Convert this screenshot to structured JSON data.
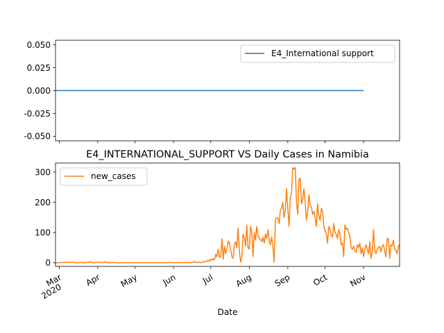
{
  "chart_data": [
    {
      "type": "line",
      "title": "",
      "xlabel": "",
      "ylabel": "",
      "ylim": [
        -0.055,
        0.055
      ],
      "yticks": [
        "0.050",
        "0.025",
        "0.000",
        "-0.025",
        "-0.050"
      ],
      "ytick_values": [
        0.05,
        0.025,
        0.0,
        -0.025,
        -0.05
      ],
      "legend": "upper right",
      "series": [
        {
          "name": "E4_International support",
          "color": "#1f77b4",
          "x": [
            "2020-02-27",
            "2020-11-01"
          ],
          "values": [
            0,
            0
          ]
        }
      ]
    },
    {
      "type": "line",
      "title": "E4_INTERNATIONAL_SUPPORT VS Daily Cases in Namibia",
      "xlabel": "Date",
      "ylabel": "",
      "ylim": [
        -12,
        330
      ],
      "yticks": [
        "0",
        "100",
        "200",
        "300"
      ],
      "ytick_values": [
        0,
        100,
        200,
        300
      ],
      "legend": "upper left",
      "x_ticks": [
        {
          "date": "2020-03-01",
          "label": "Mar",
          "sublabel": "2020"
        },
        {
          "date": "2020-04-01",
          "label": "Apr"
        },
        {
          "date": "2020-05-01",
          "label": "May"
        },
        {
          "date": "2020-06-01",
          "label": "Jun"
        },
        {
          "date": "2020-07-01",
          "label": "Jul"
        },
        {
          "date": "2020-08-01",
          "label": "Aug"
        },
        {
          "date": "2020-09-01",
          "label": "Sep"
        },
        {
          "date": "2020-10-01",
          "label": "Oct"
        },
        {
          "date": "2020-11-01",
          "label": "Nov"
        }
      ],
      "series": [
        {
          "name": "new_cases",
          "color": "#ff7f0e",
          "points": [
            [
              "2020-02-27",
              0
            ],
            [
              "2020-03-13",
              2
            ],
            [
              "2020-03-14",
              0
            ],
            [
              "2020-03-20",
              1
            ],
            [
              "2020-03-21",
              0
            ],
            [
              "2020-03-27",
              3
            ],
            [
              "2020-03-28",
              0
            ],
            [
              "2020-04-03",
              2
            ],
            [
              "2020-04-04",
              0
            ],
            [
              "2020-04-08",
              3
            ],
            [
              "2020-04-09",
              0
            ],
            [
              "2020-04-14",
              1
            ],
            [
              "2020-04-15",
              0
            ],
            [
              "2020-05-28",
              0
            ],
            [
              "2020-05-29",
              2
            ],
            [
              "2020-05-30",
              0
            ],
            [
              "2020-06-14",
              1
            ],
            [
              "2020-06-15",
              0
            ],
            [
              "2020-06-18",
              4
            ],
            [
              "2020-06-19",
              1
            ],
            [
              "2020-06-22",
              2
            ],
            [
              "2020-06-23",
              0
            ],
            [
              "2020-06-26",
              5
            ],
            [
              "2020-06-27",
              3
            ],
            [
              "2020-06-29",
              9
            ],
            [
              "2020-06-30",
              5
            ],
            [
              "2020-07-01",
              12
            ],
            [
              "2020-07-02",
              8
            ],
            [
              "2020-07-03",
              14
            ],
            [
              "2020-07-04",
              10
            ],
            [
              "2020-07-05",
              28
            ],
            [
              "2020-07-06",
              20
            ],
            [
              "2020-07-07",
              45
            ],
            [
              "2020-07-08",
              18
            ],
            [
              "2020-07-09",
              20
            ],
            [
              "2020-07-10",
              80
            ],
            [
              "2020-07-11",
              12
            ],
            [
              "2020-07-12",
              55
            ],
            [
              "2020-07-13",
              30
            ],
            [
              "2020-07-14",
              48
            ],
            [
              "2020-07-15",
              72
            ],
            [
              "2020-07-16",
              65
            ],
            [
              "2020-07-17",
              42
            ],
            [
              "2020-07-18",
              20
            ],
            [
              "2020-07-19",
              15
            ],
            [
              "2020-07-20",
              60
            ],
            [
              "2020-07-21",
              70
            ],
            [
              "2020-07-22",
              50
            ],
            [
              "2020-07-23",
              115
            ],
            [
              "2020-07-24",
              40
            ],
            [
              "2020-07-25",
              2
            ],
            [
              "2020-07-26",
              20
            ],
            [
              "2020-07-27",
              95
            ],
            [
              "2020-07-28",
              82
            ],
            [
              "2020-07-29",
              55
            ],
            [
              "2020-07-30",
              125
            ],
            [
              "2020-07-31",
              50
            ],
            [
              "2020-08-01",
              45
            ],
            [
              "2020-08-02",
              120
            ],
            [
              "2020-08-03",
              105
            ],
            [
              "2020-08-04",
              20
            ],
            [
              "2020-08-05",
              100
            ],
            [
              "2020-08-06",
              75
            ],
            [
              "2020-08-07",
              120
            ],
            [
              "2020-08-08",
              90
            ],
            [
              "2020-08-09",
              80
            ],
            [
              "2020-08-10",
              78
            ],
            [
              "2020-08-11",
              70
            ],
            [
              "2020-08-12",
              85
            ],
            [
              "2020-08-13",
              65
            ],
            [
              "2020-08-14",
              95
            ],
            [
              "2020-08-15",
              80
            ],
            [
              "2020-08-16",
              110
            ],
            [
              "2020-08-17",
              75
            ],
            [
              "2020-08-18",
              60
            ],
            [
              "2020-08-19",
              85
            ],
            [
              "2020-08-20",
              55
            ],
            [
              "2020-08-21",
              2
            ],
            [
              "2020-08-22",
              145
            ],
            [
              "2020-08-23",
              150
            ],
            [
              "2020-08-24",
              148
            ],
            [
              "2020-08-25",
              130
            ],
            [
              "2020-08-26",
              175
            ],
            [
              "2020-08-27",
              180
            ],
            [
              "2020-08-28",
              200
            ],
            [
              "2020-08-29",
              150
            ],
            [
              "2020-08-30",
              175
            ],
            [
              "2020-08-31",
              245
            ],
            [
              "2020-09-01",
              180
            ],
            [
              "2020-09-02",
              120
            ],
            [
              "2020-09-03",
              215
            ],
            [
              "2020-09-04",
              230
            ],
            [
              "2020-09-05",
              315
            ],
            [
              "2020-09-06",
              310
            ],
            [
              "2020-09-07",
              315
            ],
            [
              "2020-09-08",
              200
            ],
            [
              "2020-09-09",
              160
            ],
            [
              "2020-09-10",
              275
            ],
            [
              "2020-09-11",
              280
            ],
            [
              "2020-09-12",
              195
            ],
            [
              "2020-09-13",
              210
            ],
            [
              "2020-09-14",
              245
            ],
            [
              "2020-09-15",
              200
            ],
            [
              "2020-09-16",
              140
            ],
            [
              "2020-09-17",
              170
            ],
            [
              "2020-09-18",
              225
            ],
            [
              "2020-09-19",
              190
            ],
            [
              "2020-09-20",
              185
            ],
            [
              "2020-09-21",
              160
            ],
            [
              "2020-09-22",
              170
            ],
            [
              "2020-09-23",
              150
            ],
            [
              "2020-09-24",
              120
            ],
            [
              "2020-09-25",
              195
            ],
            [
              "2020-09-26",
              155
            ],
            [
              "2020-09-27",
              140
            ],
            [
              "2020-09-28",
              180
            ],
            [
              "2020-09-29",
              170
            ],
            [
              "2020-09-30",
              120
            ],
            [
              "2020-10-01",
              105
            ],
            [
              "2020-10-02",
              95
            ],
            [
              "2020-10-03",
              65
            ],
            [
              "2020-10-04",
              120
            ],
            [
              "2020-10-05",
              110
            ],
            [
              "2020-10-06",
              90
            ],
            [
              "2020-10-07",
              85
            ],
            [
              "2020-10-08",
              130
            ],
            [
              "2020-10-09",
              100
            ],
            [
              "2020-10-10",
              95
            ],
            [
              "2020-10-11",
              80
            ],
            [
              "2020-10-12",
              110
            ],
            [
              "2020-10-13",
              95
            ],
            [
              "2020-10-14",
              60
            ],
            [
              "2020-10-15",
              65
            ],
            [
              "2020-10-16",
              20
            ],
            [
              "2020-10-17",
              125
            ],
            [
              "2020-10-18",
              110
            ],
            [
              "2020-10-19",
              115
            ],
            [
              "2020-10-20",
              100
            ],
            [
              "2020-10-21",
              85
            ],
            [
              "2020-10-22",
              50
            ],
            [
              "2020-10-23",
              45
            ],
            [
              "2020-10-24",
              55
            ],
            [
              "2020-10-25",
              40
            ],
            [
              "2020-10-26",
              35
            ],
            [
              "2020-10-27",
              60
            ],
            [
              "2020-10-28",
              50
            ],
            [
              "2020-10-29",
              65
            ],
            [
              "2020-10-30",
              30
            ],
            [
              "2020-10-31",
              50
            ],
            [
              "2020-11-01",
              20
            ],
            [
              "2020-11-02",
              45
            ],
            [
              "2020-11-03",
              60
            ],
            [
              "2020-11-04",
              45
            ],
            [
              "2020-11-05",
              30
            ],
            [
              "2020-11-06",
              70
            ],
            [
              "2020-11-07",
              15
            ],
            [
              "2020-11-08",
              35
            ],
            [
              "2020-11-09",
              110
            ],
            [
              "2020-11-10",
              40
            ],
            [
              "2020-11-11",
              30
            ],
            [
              "2020-11-12",
              45
            ],
            [
              "2020-11-13",
              50
            ],
            [
              "2020-11-14",
              55
            ],
            [
              "2020-11-15",
              35
            ],
            [
              "2020-11-16",
              55
            ],
            [
              "2020-11-17",
              60
            ],
            [
              "2020-11-18",
              40
            ],
            [
              "2020-11-19",
              20
            ],
            [
              "2020-11-20",
              80
            ],
            [
              "2020-11-21",
              80
            ],
            [
              "2020-11-22",
              15
            ],
            [
              "2020-11-23",
              60
            ],
            [
              "2020-11-24",
              55
            ],
            [
              "2020-11-25",
              75
            ],
            [
              "2020-11-26",
              45
            ],
            [
              "2020-11-27",
              40
            ],
            [
              "2020-11-28",
              30
            ],
            [
              "2020-11-29",
              55
            ],
            [
              "2020-11-30",
              60
            ]
          ]
        }
      ]
    }
  ]
}
